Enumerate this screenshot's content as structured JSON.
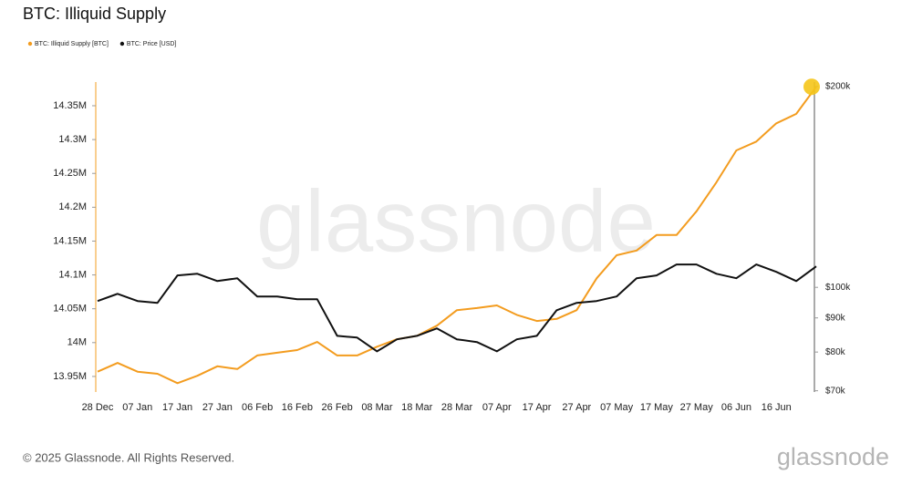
{
  "chart_data": {
    "type": "line",
    "title": "BTC: Illiquid Supply",
    "categories": [
      "28 Dec",
      null,
      "07 Jan",
      null,
      "17 Jan",
      null,
      "27 Jan",
      null,
      "06 Feb",
      null,
      "16 Feb",
      null,
      "26 Feb",
      null,
      "08 Mar",
      null,
      "18 Mar",
      null,
      "28 Mar",
      null,
      "07 Apr",
      null,
      "17 Apr",
      null,
      "27 Apr",
      null,
      "07 May",
      null,
      "17 May",
      null,
      "27 May",
      null,
      "06 Jun",
      null,
      "16 Jun",
      null,
      null
    ],
    "series": [
      {
        "name": "BTC: Illiquid Supply [BTC]",
        "color": "#f39c1f",
        "axis": "y",
        "values": [
          13957000,
          13970000,
          13957000,
          13954000,
          13940000,
          13951000,
          13965000,
          13961000,
          13981000,
          13985000,
          13989000,
          14001000,
          13981000,
          13981000,
          13994000,
          14005000,
          14010000,
          14025000,
          14048000,
          14051000,
          14055000,
          14041000,
          14032000,
          14035000,
          14048000,
          14095000,
          14129000,
          14136000,
          14159000,
          14159000,
          14194000,
          14237000,
          14284000,
          14297000,
          14324000,
          14338000,
          14378000
        ]
      },
      {
        "name": "BTC: Price [USD]",
        "color": "#111111",
        "axis": "y2",
        "values": [
          95400,
          97800,
          95400,
          94800,
          104200,
          104800,
          102200,
          103200,
          96900,
          96900,
          96000,
          96000,
          84600,
          84100,
          80200,
          83600,
          84600,
          86800,
          83600,
          82800,
          80200,
          83600,
          84600,
          92400,
          94800,
          95400,
          96900,
          103200,
          104200,
          108200,
          108200,
          104800,
          103200,
          108200,
          105500,
          102200,
          107500
        ]
      }
    ],
    "ylim": [
      13927000,
      14385000
    ],
    "yticks": [
      {
        "value": 13950000,
        "label": "13.95M"
      },
      {
        "value": 14000000,
        "label": "14M"
      },
      {
        "value": 14050000,
        "label": "14.05M"
      },
      {
        "value": 14100000,
        "label": "14.1M"
      },
      {
        "value": 14150000,
        "label": "14.15M"
      },
      {
        "value": 14200000,
        "label": "14.2M"
      },
      {
        "value": 14250000,
        "label": "14.25M"
      },
      {
        "value": 14300000,
        "label": "14.3M"
      },
      {
        "value": 14350000,
        "label": "14.35M"
      }
    ],
    "y2lim": [
      69700,
      203000
    ],
    "y2ticks": [
      {
        "value": 70000,
        "label": "$70k"
      },
      {
        "value": 80000,
        "label": "$80k"
      },
      {
        "value": 90000,
        "label": "$90k"
      },
      {
        "value": 100000,
        "label": "$100k"
      },
      {
        "value": 200000,
        "label": "$200k"
      }
    ],
    "y2_log": true,
    "grid": false,
    "legend": "top-left",
    "watermark": "glassnode",
    "footer": "© 2025 Glassnode. All Rights Reserved.",
    "logo": "glassnode"
  }
}
